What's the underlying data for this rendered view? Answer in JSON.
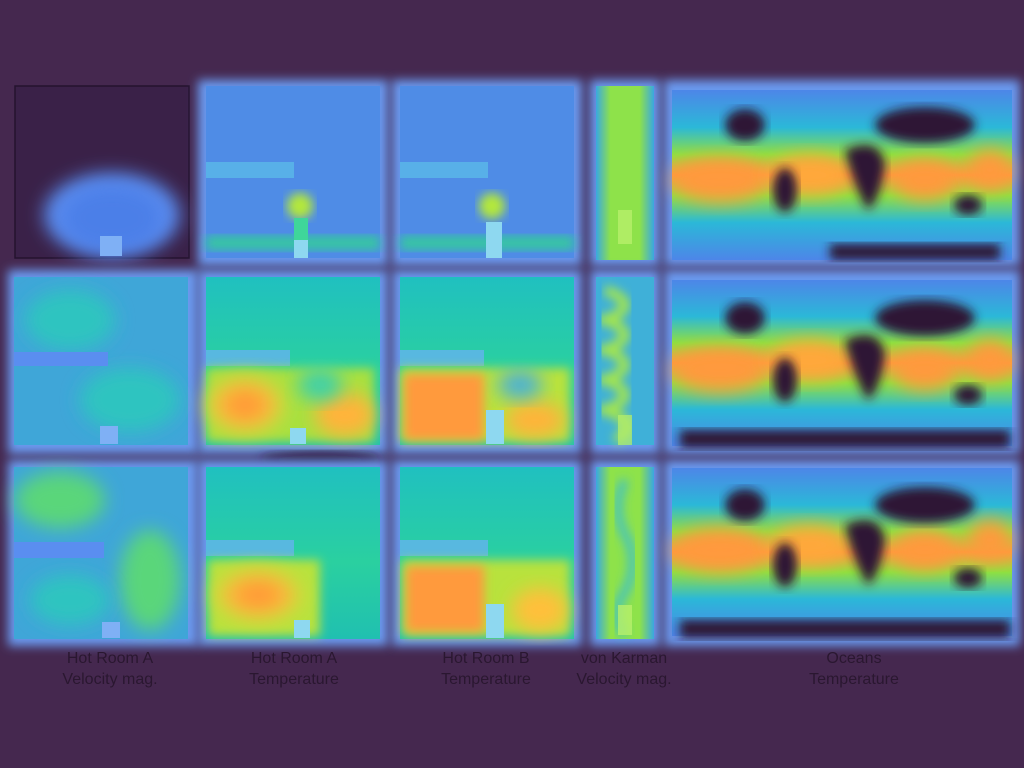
{
  "colors": {
    "background": "#45284f",
    "label_text": "#2a1730",
    "land": "#2d1436",
    "panel_outline": "#2a1a3a"
  },
  "columns": [
    {
      "line1": "Hot Room A",
      "line2": "Velocity mag."
    },
    {
      "line1": "Hot Room A",
      "line2": "Temperature"
    },
    {
      "line1": "Hot Room B",
      "line2": "Temperature"
    },
    {
      "line1": "von Karman",
      "line2": "Velocity mag."
    },
    {
      "line1": "Oceans",
      "line2": "Temperature"
    }
  ]
}
